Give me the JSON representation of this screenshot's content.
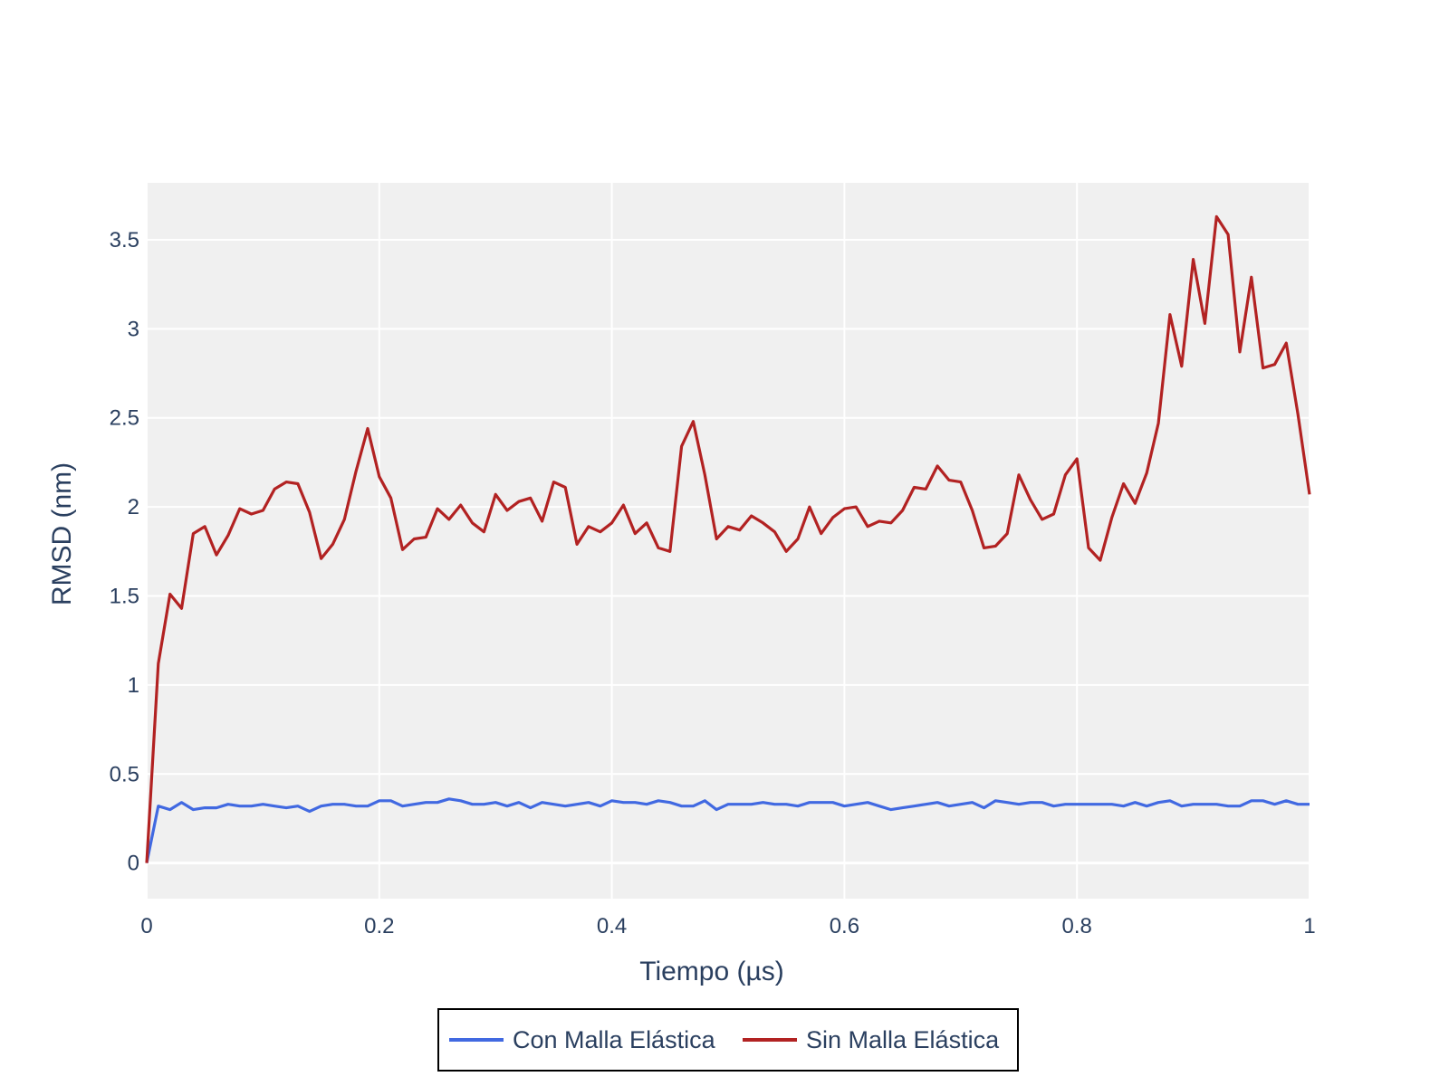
{
  "chart_data": {
    "type": "line",
    "title": "",
    "xlabel": "Tiempo (µs)",
    "ylabel": "RMSD (nm)",
    "xlim": [
      0,
      1
    ],
    "ylim": [
      -0.2,
      3.82
    ],
    "x_ticks": [
      0,
      0.2,
      0.4,
      0.6,
      0.8,
      1
    ],
    "x_tick_labels": [
      "0",
      "0.2",
      "0.4",
      "0.6",
      "0.8",
      "1"
    ],
    "y_ticks": [
      0,
      0.5,
      1,
      1.5,
      2,
      2.5,
      3,
      3.5
    ],
    "y_tick_labels": [
      "0",
      "0.5",
      "1",
      "1.5",
      "2",
      "2.5",
      "3",
      "3.5"
    ],
    "grid": true,
    "legend_position": "bottom-center",
    "plot_background": "#f0f0f0",
    "x_step": 0.01,
    "series": [
      {
        "name": "Con Malla Elástica",
        "color": "#4169e1",
        "values": [
          0.0,
          0.32,
          0.3,
          0.34,
          0.3,
          0.31,
          0.31,
          0.33,
          0.32,
          0.32,
          0.33,
          0.32,
          0.31,
          0.32,
          0.29,
          0.32,
          0.33,
          0.33,
          0.32,
          0.32,
          0.35,
          0.35,
          0.32,
          0.33,
          0.34,
          0.34,
          0.36,
          0.35,
          0.33,
          0.33,
          0.34,
          0.32,
          0.34,
          0.31,
          0.34,
          0.33,
          0.32,
          0.33,
          0.34,
          0.32,
          0.35,
          0.34,
          0.34,
          0.33,
          0.35,
          0.34,
          0.32,
          0.32,
          0.35,
          0.3,
          0.33,
          0.33,
          0.33,
          0.34,
          0.33,
          0.33,
          0.32,
          0.34,
          0.34,
          0.34,
          0.32,
          0.33,
          0.34,
          0.32,
          0.3,
          0.31,
          0.32,
          0.33,
          0.34,
          0.32,
          0.33,
          0.34,
          0.31,
          0.35,
          0.34,
          0.33,
          0.34,
          0.34,
          0.32,
          0.33,
          0.33,
          0.33,
          0.33,
          0.33,
          0.32,
          0.34,
          0.32,
          0.34,
          0.35,
          0.32,
          0.33,
          0.33,
          0.33,
          0.32,
          0.32,
          0.35,
          0.35,
          0.33,
          0.35,
          0.33,
          0.33
        ]
      },
      {
        "name": "Sin Malla Elástica",
        "color": "#b22222",
        "values": [
          0.0,
          1.12,
          1.51,
          1.43,
          1.85,
          1.89,
          1.73,
          1.84,
          1.99,
          1.96,
          1.98,
          2.1,
          2.14,
          2.13,
          1.97,
          1.71,
          1.79,
          1.93,
          2.2,
          2.44,
          2.17,
          2.05,
          1.76,
          1.82,
          1.83,
          1.99,
          1.93,
          2.01,
          1.91,
          1.86,
          2.07,
          1.98,
          2.03,
          2.05,
          1.92,
          2.14,
          2.11,
          1.79,
          1.89,
          1.86,
          1.91,
          2.01,
          1.85,
          1.91,
          1.77,
          1.75,
          2.34,
          2.48,
          2.18,
          1.82,
          1.89,
          1.87,
          1.95,
          1.91,
          1.86,
          1.75,
          1.82,
          2.0,
          1.85,
          1.94,
          1.99,
          2.0,
          1.89,
          1.92,
          1.91,
          1.98,
          2.11,
          2.1,
          2.23,
          2.15,
          2.14,
          1.98,
          1.77,
          1.78,
          1.85,
          2.18,
          2.04,
          1.93,
          1.96,
          2.18,
          2.27,
          1.77,
          1.7,
          1.94,
          2.13,
          2.02,
          2.19,
          2.47,
          3.08,
          2.79,
          3.39,
          3.03,
          3.63,
          3.53,
          2.87,
          3.29,
          2.78,
          2.8,
          2.92,
          2.52,
          2.07
        ]
      }
    ]
  }
}
